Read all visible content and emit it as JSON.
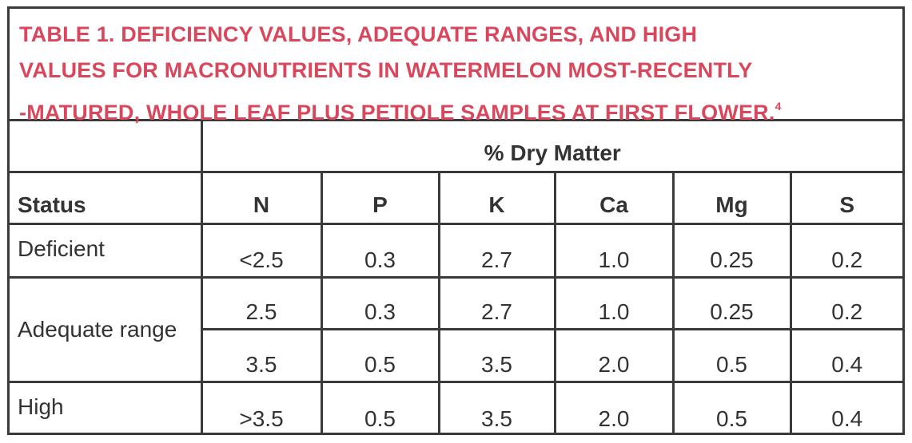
{
  "title": {
    "lines": [
      "TABLE 1. DEFICIENCY VALUES, ADEQUATE RANGES, AND HIGH",
      "VALUES FOR MACRONUTRIENTS IN WATERMELON MOST-RECENTLY",
      "-MATURED, WHOLE LEAF PLUS PETIOLE SAMPLES AT FIRST FLOWER."
    ],
    "note": "4"
  },
  "table": {
    "group_header": "% Dry Matter",
    "columns": [
      "Status",
      "N",
      "P",
      "K",
      "Ca",
      "Mg",
      "S"
    ],
    "rows": [
      {
        "status": "Deficient",
        "values": [
          [
            "<2.5",
            "0.3",
            "2.7",
            "1.0",
            "0.25",
            "0.2"
          ]
        ]
      },
      {
        "status": "Adequate range",
        "values": [
          [
            "2.5",
            "0.3",
            "2.7",
            "1.0",
            "0.25",
            "0.2"
          ],
          [
            "3.5",
            "0.5",
            "3.5",
            "2.0",
            "0.5",
            "0.4"
          ]
        ]
      },
      {
        "status": "High",
        "values": [
          [
            ">3.5",
            "0.5",
            "3.5",
            "2.0",
            "0.5",
            "0.4"
          ]
        ]
      }
    ]
  }
}
